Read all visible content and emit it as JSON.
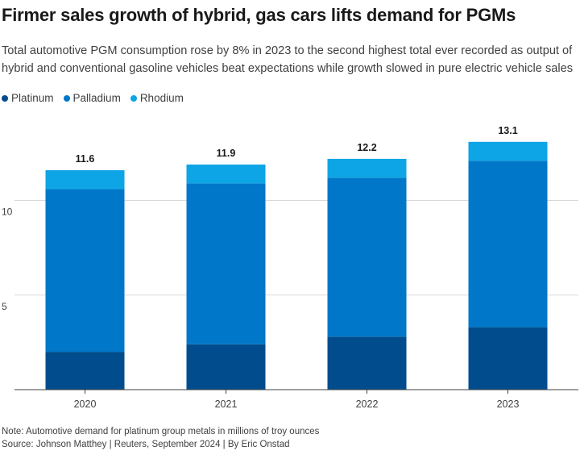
{
  "title": "Firmer sales growth of hybrid, gas cars lifts demand for PGMs",
  "subtitle": "Total automotive PGM consumption rose by 8% in 2023 to the second highest total ever recorded as output of hybrid and conventional gasoline vehicles beat expectations while growth slowed in pure electric vehicle sales",
  "note": "Note: Automotive demand for platinum group metals in millions of troy ounces",
  "source": "Source: Johnson Matthey | Reuters, September 2024 | By Eric Onstad",
  "colors": {
    "platinum": "#004c8c",
    "palladium": "#0077c8",
    "rhodium": "#0ea5e6"
  },
  "chart_data": {
    "type": "bar",
    "stacked": true,
    "categories": [
      "2020",
      "2021",
      "2022",
      "2023"
    ],
    "series": [
      {
        "name": "Platinum",
        "color": "#004c8c",
        "values": [
          2.0,
          2.4,
          2.8,
          3.3
        ]
      },
      {
        "name": "Palladium",
        "color": "#0077c8",
        "values": [
          8.6,
          8.5,
          8.4,
          8.8
        ]
      },
      {
        "name": "Rhodium",
        "color": "#0ea5e6",
        "values": [
          1.0,
          1.0,
          1.0,
          1.0
        ]
      }
    ],
    "totals": [
      11.6,
      11.9,
      12.2,
      13.1
    ],
    "total_labels": [
      "11.6",
      "11.9",
      "12.2",
      "13.1"
    ],
    "ylim": [
      0,
      14
    ],
    "yticks": [
      5,
      10
    ],
    "ytick_labels": [
      "5",
      "10"
    ],
    "grid": true,
    "legend": "top-left"
  }
}
